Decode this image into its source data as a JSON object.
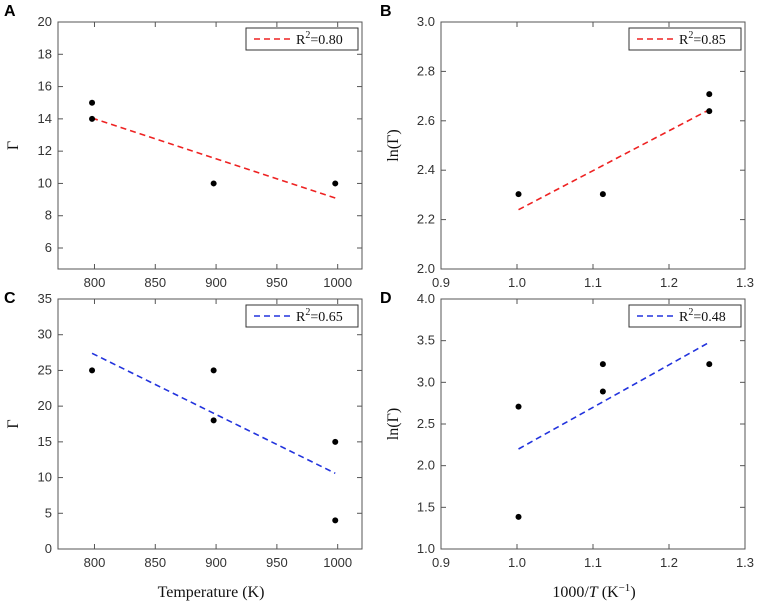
{
  "figure": {
    "xlabel_left": "Temperature (K)",
    "xlabel_right_prefix": "1000/",
    "xlabel_right_var": "T",
    "xlabel_right_unit": " (K",
    "xlabel_right_exp": "−1",
    "xlabel_right_close": ")"
  },
  "chart_data": [
    {
      "panel": "A",
      "type": "scatter",
      "title": "",
      "xlabel": "",
      "ylabel": "Γ",
      "xlim": [
        770,
        1020
      ],
      "ylim": [
        4.7,
        20
      ],
      "xticks": [
        800,
        850,
        900,
        950,
        1000
      ],
      "yticks": [
        6,
        8,
        10,
        12,
        14,
        16,
        18,
        20
      ],
      "x_tick_labels_shown": true,
      "decimals": 0,
      "points": [
        [
          798,
          15
        ],
        [
          798,
          14
        ],
        [
          898,
          10
        ],
        [
          998,
          10
        ]
      ],
      "fit": {
        "x": [
          798,
          998
        ],
        "y": [
          14.05,
          9.1
        ],
        "color": "#ee2222"
      },
      "legend": {
        "label_base": "R",
        "label_exp": "2",
        "label_value": "=0.80",
        "position": "top-right"
      }
    },
    {
      "panel": "B",
      "type": "scatter",
      "title": "",
      "xlabel": "",
      "ylabel": "ln(Γ)",
      "xlim": [
        0.9,
        1.3
      ],
      "ylim": [
        2.0,
        3.0
      ],
      "xticks": [
        0.9,
        1.0,
        1.1,
        1.2,
        1.3
      ],
      "yticks": [
        2.0,
        2.2,
        2.4,
        2.6,
        2.8,
        3.0
      ],
      "x_tick_labels_shown": true,
      "decimals": 1,
      "points": [
        [
          1.002,
          2.303
        ],
        [
          1.113,
          2.303
        ],
        [
          1.253,
          2.708
        ],
        [
          1.253,
          2.639
        ]
      ],
      "fit": {
        "x": [
          1.002,
          1.253
        ],
        "y": [
          2.24,
          2.645
        ],
        "color": "#ee2222"
      },
      "legend": {
        "label_base": "R",
        "label_exp": "2",
        "label_value": "=0.85",
        "position": "top-right"
      }
    },
    {
      "panel": "C",
      "type": "scatter",
      "title": "",
      "xlabel": "Temperature (K)",
      "ylabel": "Γ",
      "xlim": [
        770,
        1020
      ],
      "ylim": [
        0,
        35
      ],
      "xticks": [
        800,
        850,
        900,
        950,
        1000
      ],
      "yticks": [
        0,
        5,
        10,
        15,
        20,
        25,
        30,
        35
      ],
      "x_tick_labels_shown": true,
      "decimals": 0,
      "points": [
        [
          798,
          25
        ],
        [
          898,
          25
        ],
        [
          898,
          18
        ],
        [
          998,
          15
        ],
        [
          998,
          4
        ]
      ],
      "fit": {
        "x": [
          798,
          998
        ],
        "y": [
          27.4,
          10.6
        ],
        "color": "#2233dd"
      },
      "legend": {
        "label_base": "R",
        "label_exp": "2",
        "label_value": "=0.65",
        "position": "top-right"
      }
    },
    {
      "panel": "D",
      "type": "scatter",
      "title": "",
      "xlabel": "1000/T (K−1)",
      "ylabel": "ln(Γ)",
      "xlim": [
        0.9,
        1.3
      ],
      "ylim": [
        1.0,
        4.0
      ],
      "xticks": [
        0.9,
        1.0,
        1.1,
        1.2,
        1.3
      ],
      "yticks": [
        1.0,
        1.5,
        2.0,
        2.5,
        3.0,
        3.5,
        4.0
      ],
      "x_tick_labels_shown": true,
      "decimals": 1,
      "points": [
        [
          1.002,
          2.708
        ],
        [
          1.002,
          1.386
        ],
        [
          1.113,
          3.219
        ],
        [
          1.113,
          2.89
        ],
        [
          1.253,
          3.219
        ]
      ],
      "fit": {
        "x": [
          1.002,
          1.253
        ],
        "y": [
          2.2,
          3.48
        ],
        "color": "#2233dd"
      },
      "legend": {
        "label_base": "R",
        "label_exp": "2",
        "label_value": "=0.48",
        "position": "top-right"
      }
    }
  ]
}
